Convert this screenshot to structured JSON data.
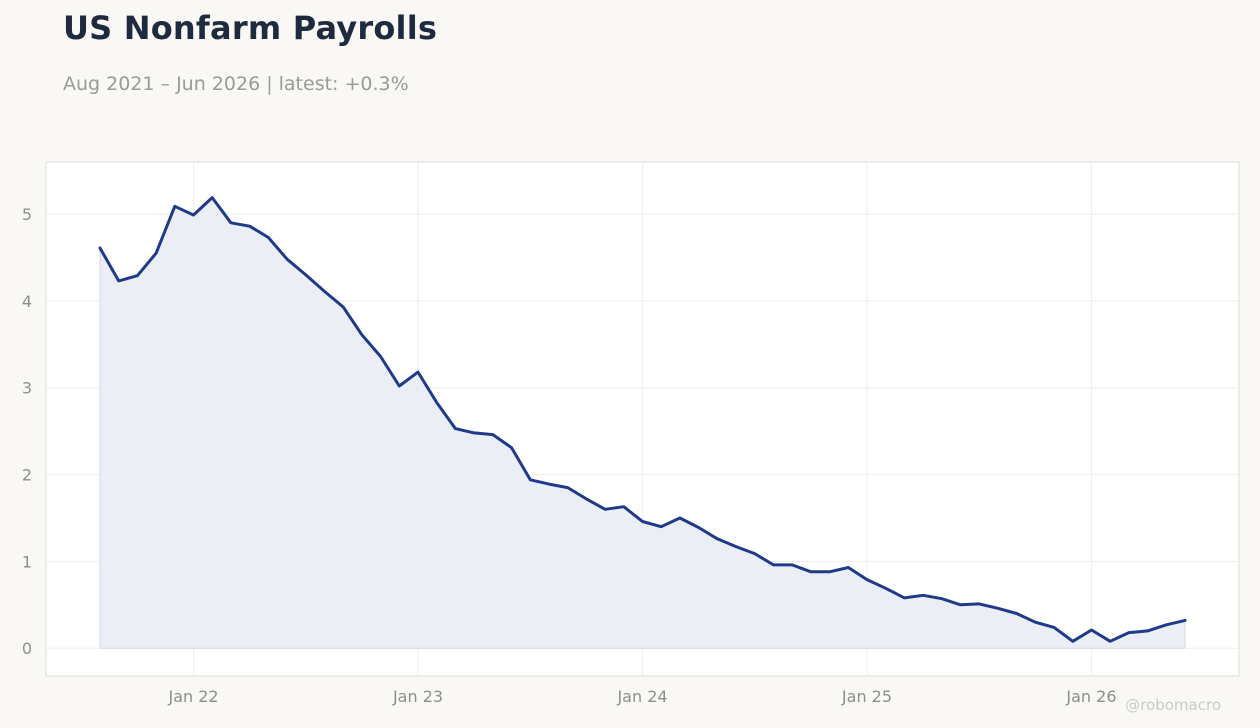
{
  "header": {
    "title": "US Nonfarm Payrolls",
    "subtitle": "Aug 2021 – Jun 2026 | latest: +0.3%"
  },
  "watermark": "@robomacro",
  "colors": {
    "line": "#1f3a8a",
    "fill": "#eceef5",
    "background": "#f9f8f5",
    "plot_background": "#ffffff",
    "grid": "#eeeeee"
  },
  "chart_data": {
    "type": "area",
    "title": "US Nonfarm Payrolls",
    "subtitle": "Aug 2021 – Jun 2026 | latest: +0.3%",
    "xlabel": "",
    "ylabel": "",
    "x_start": "2021-08",
    "x_end": "2026-06",
    "x_ticks": [
      {
        "date": "2022-01",
        "label": "Jan 22"
      },
      {
        "date": "2023-01",
        "label": "Jan 23"
      },
      {
        "date": "2024-01",
        "label": "Jan 24"
      },
      {
        "date": "2025-01",
        "label": "Jan 25"
      },
      {
        "date": "2026-01",
        "label": "Jan 26"
      }
    ],
    "y_ticks": [
      0,
      1,
      2,
      3,
      4,
      5
    ],
    "ylim": [
      -0.32,
      5.6
    ],
    "grid": true,
    "legend": "none",
    "series": [
      {
        "dates": [
          "2021-08",
          "2021-09",
          "2021-10",
          "2021-11",
          "2021-12",
          "2022-01",
          "2022-02",
          "2022-03",
          "2022-04",
          "2022-05",
          "2022-06",
          "2022-07",
          "2022-08",
          "2022-09",
          "2022-10",
          "2022-11",
          "2022-12",
          "2023-01",
          "2023-02",
          "2023-03",
          "2023-04",
          "2023-05",
          "2023-06",
          "2023-07",
          "2023-08",
          "2023-09",
          "2023-10",
          "2023-11",
          "2023-12",
          "2024-01",
          "2024-02",
          "2024-03",
          "2024-04",
          "2024-05",
          "2024-06",
          "2024-07",
          "2024-08",
          "2024-09",
          "2024-10",
          "2024-11",
          "2024-12",
          "2025-01",
          "2025-02",
          "2025-03",
          "2025-04",
          "2025-05",
          "2025-06",
          "2025-07",
          "2025-08",
          "2025-09",
          "2025-10",
          "2025-11",
          "2025-12",
          "2026-01",
          "2026-02",
          "2026-03",
          "2026-04",
          "2026-05",
          "2026-06"
        ],
        "values": [
          4.61,
          4.23,
          4.29,
          4.55,
          5.09,
          4.99,
          5.19,
          4.9,
          4.86,
          4.73,
          4.48,
          4.3,
          4.11,
          3.93,
          3.61,
          3.36,
          3.02,
          3.18,
          2.83,
          2.53,
          2.48,
          2.46,
          2.31,
          1.94,
          1.89,
          1.85,
          1.72,
          1.6,
          1.63,
          1.46,
          1.4,
          1.5,
          1.39,
          1.26,
          1.17,
          1.09,
          0.96,
          0.96,
          0.88,
          0.88,
          0.93,
          0.79,
          0.69,
          0.58,
          0.61,
          0.57,
          0.5,
          0.51,
          0.46,
          0.4,
          0.3,
          0.24,
          0.08,
          0.21,
          0.08,
          0.18,
          0.2,
          0.27,
          0.32
        ]
      }
    ]
  }
}
